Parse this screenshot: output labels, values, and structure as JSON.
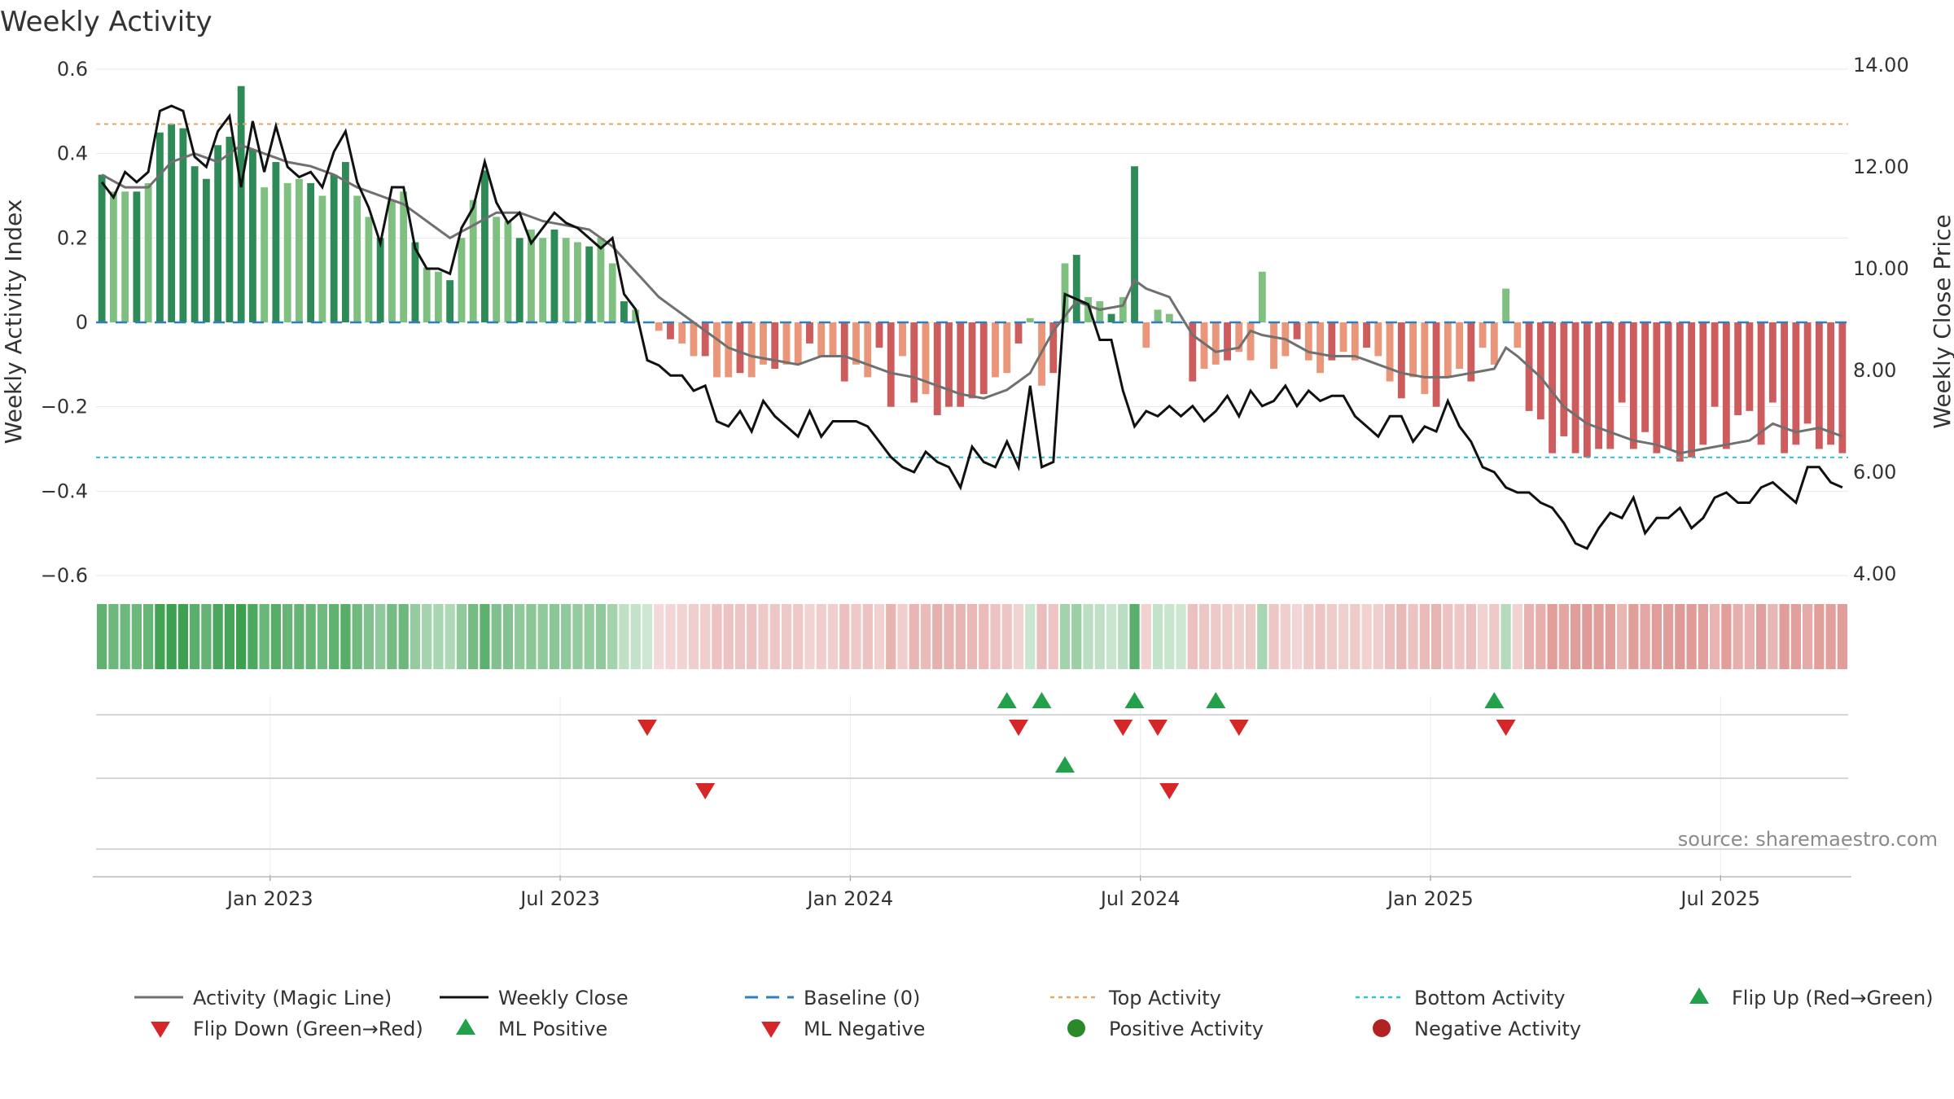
{
  "chart_data": {
    "type": "bar",
    "title": "Weekly Activity",
    "ylabel": "Weekly Activity Index",
    "y2label": "Close Price",
    "y2label_full": "Weekly Close Price",
    "ylim": [
      -0.65,
      0.6
    ],
    "y2lim": [
      3.75,
      14.0
    ],
    "yticks": [
      0.6,
      0.4,
      0.2,
      0,
      -0.2,
      -0.4,
      -0.6
    ],
    "ytick_labels": [
      "0.6",
      "0.4",
      "0.2",
      "0",
      "−0.2",
      "−0.4",
      "−0.6"
    ],
    "y2ticks": [
      14,
      12,
      10,
      8,
      6,
      4
    ],
    "y2tick_labels": [
      "14.00",
      "12.00",
      "10.00",
      "8.00",
      "6.00",
      "4.00"
    ],
    "x_start": "2022-10-24",
    "x_step_days": 7,
    "week_count": 151,
    "xtick_labels": [
      "Jan 2023",
      "Jul 2023",
      "Jan 2024",
      "Jul 2024",
      "Jan 2025",
      "Jul 2025"
    ],
    "xtick_weeks": [
      14.5,
      39.5,
      64.5,
      89.5,
      114.5,
      139.5
    ],
    "top_activity": 0.47,
    "bottom_activity": -0.32,
    "baseline": 0,
    "activity_keypoints": [
      [
        0,
        0.35
      ],
      [
        1,
        0.31
      ],
      [
        3,
        0.31
      ],
      [
        4,
        0.33
      ],
      [
        5,
        0.45
      ],
      [
        6,
        0.47
      ],
      [
        7,
        0.46
      ],
      [
        8,
        0.37
      ],
      [
        9,
        0.34
      ],
      [
        10,
        0.42
      ],
      [
        11,
        0.44
      ],
      [
        12,
        0.56
      ],
      [
        13,
        0.41
      ],
      [
        14,
        0.32
      ],
      [
        15,
        0.38
      ],
      [
        16,
        0.33
      ],
      [
        17,
        0.34
      ],
      [
        18,
        0.33
      ],
      [
        19,
        0.3
      ],
      [
        20,
        0.35
      ],
      [
        21,
        0.38
      ],
      [
        22,
        0.3
      ],
      [
        23,
        0.25
      ],
      [
        24,
        0.2
      ],
      [
        25,
        0.29
      ],
      [
        26,
        0.31
      ],
      [
        27,
        0.19
      ],
      [
        28,
        0.13
      ],
      [
        29,
        0.12
      ],
      [
        30,
        0.1
      ],
      [
        31,
        0.2
      ],
      [
        32,
        0.29
      ],
      [
        33,
        0.36
      ],
      [
        34,
        0.25
      ],
      [
        35,
        0.24
      ],
      [
        36,
        0.2
      ],
      [
        37,
        0.22
      ],
      [
        38,
        0.2
      ],
      [
        39,
        0.22
      ],
      [
        40,
        0.2
      ],
      [
        41,
        0.19
      ],
      [
        42,
        0.18
      ],
      [
        43,
        0.2
      ],
      [
        44,
        0.14
      ],
      [
        45,
        0.05
      ],
      [
        46,
        0.03
      ],
      [
        47,
        0.0
      ],
      [
        48,
        -0.02
      ],
      [
        49,
        -0.04
      ],
      [
        50,
        -0.05
      ],
      [
        51,
        -0.08
      ],
      [
        52,
        -0.08
      ],
      [
        53,
        -0.13
      ],
      [
        54,
        -0.13
      ],
      [
        55,
        -0.12
      ],
      [
        56,
        -0.13
      ],
      [
        57,
        -0.1
      ],
      [
        58,
        -0.11
      ],
      [
        59,
        -0.1
      ],
      [
        60,
        -0.1
      ],
      [
        61,
        -0.05
      ],
      [
        62,
        -0.08
      ],
      [
        63,
        -0.08
      ],
      [
        64,
        -0.14
      ],
      [
        65,
        -0.1
      ],
      [
        66,
        -0.13
      ],
      [
        67,
        -0.06
      ],
      [
        68,
        -0.2
      ],
      [
        69,
        -0.08
      ],
      [
        70,
        -0.19
      ],
      [
        71,
        -0.17
      ],
      [
        72,
        -0.22
      ],
      [
        73,
        -0.2
      ],
      [
        74,
        -0.2
      ],
      [
        75,
        -0.18
      ],
      [
        76,
        -0.17
      ],
      [
        77,
        -0.13
      ],
      [
        78,
        -0.12
      ],
      [
        79,
        -0.05
      ],
      [
        80,
        0.01
      ],
      [
        81,
        -0.15
      ],
      [
        82,
        -0.12
      ],
      [
        83,
        0.14
      ],
      [
        84,
        0.16
      ],
      [
        85,
        0.06
      ],
      [
        86,
        0.05
      ],
      [
        87,
        0.02
      ],
      [
        88,
        0.06
      ],
      [
        89,
        0.37
      ],
      [
        90,
        -0.06
      ],
      [
        91,
        0.03
      ],
      [
        92,
        0.02
      ],
      [
        93,
        0.0
      ],
      [
        94,
        -0.14
      ],
      [
        95,
        -0.11
      ],
      [
        96,
        -0.1
      ],
      [
        97,
        -0.09
      ],
      [
        98,
        -0.07
      ],
      [
        99,
        -0.09
      ],
      [
        100,
        0.12
      ],
      [
        101,
        -0.11
      ],
      [
        102,
        -0.08
      ],
      [
        103,
        -0.04
      ],
      [
        104,
        -0.09
      ],
      [
        105,
        -0.12
      ],
      [
        106,
        -0.09
      ],
      [
        107,
        -0.07
      ],
      [
        108,
        -0.09
      ],
      [
        109,
        -0.06
      ],
      [
        110,
        -0.08
      ],
      [
        111,
        -0.14
      ],
      [
        112,
        -0.18
      ],
      [
        113,
        -0.13
      ],
      [
        114,
        -0.17
      ],
      [
        115,
        -0.2
      ],
      [
        116,
        -0.13
      ],
      [
        117,
        -0.11
      ],
      [
        118,
        -0.14
      ],
      [
        119,
        -0.06
      ],
      [
        120,
        -0.1
      ],
      [
        121,
        0.08
      ],
      [
        122,
        -0.06
      ],
      [
        123,
        -0.21
      ],
      [
        124,
        -0.23
      ],
      [
        125,
        -0.31
      ],
      [
        126,
        -0.27
      ],
      [
        127,
        -0.31
      ],
      [
        128,
        -0.32
      ],
      [
        129,
        -0.3
      ],
      [
        130,
        -0.3
      ],
      [
        131,
        -0.19
      ],
      [
        132,
        -0.3
      ],
      [
        133,
        -0.26
      ],
      [
        134,
        -0.31
      ],
      [
        135,
        -0.3
      ],
      [
        136,
        -0.33
      ],
      [
        137,
        -0.32
      ],
      [
        138,
        -0.29
      ],
      [
        139,
        -0.2
      ],
      [
        140,
        -0.3
      ],
      [
        141,
        -0.22
      ],
      [
        142,
        -0.21
      ],
      [
        143,
        -0.29
      ],
      [
        144,
        -0.19
      ],
      [
        145,
        -0.31
      ],
      [
        146,
        -0.29
      ],
      [
        147,
        -0.24
      ],
      [
        148,
        -0.3
      ],
      [
        149,
        -0.29
      ],
      [
        150,
        -0.31
      ]
    ],
    "magic_keypoints": [
      [
        0,
        0.35
      ],
      [
        2,
        0.32
      ],
      [
        4,
        0.32
      ],
      [
        6,
        0.38
      ],
      [
        8,
        0.4
      ],
      [
        10,
        0.38
      ],
      [
        12,
        0.42
      ],
      [
        14,
        0.4
      ],
      [
        16,
        0.38
      ],
      [
        18,
        0.37
      ],
      [
        20,
        0.35
      ],
      [
        22,
        0.32
      ],
      [
        24,
        0.3
      ],
      [
        26,
        0.28
      ],
      [
        28,
        0.24
      ],
      [
        30,
        0.2
      ],
      [
        32,
        0.23
      ],
      [
        34,
        0.26
      ],
      [
        36,
        0.26
      ],
      [
        38,
        0.24
      ],
      [
        40,
        0.23
      ],
      [
        42,
        0.22
      ],
      [
        44,
        0.18
      ],
      [
        46,
        0.12
      ],
      [
        48,
        0.06
      ],
      [
        50,
        0.02
      ],
      [
        52,
        -0.02
      ],
      [
        54,
        -0.06
      ],
      [
        56,
        -0.08
      ],
      [
        58,
        -0.09
      ],
      [
        60,
        -0.1
      ],
      [
        62,
        -0.08
      ],
      [
        64,
        -0.08
      ],
      [
        66,
        -0.1
      ],
      [
        68,
        -0.12
      ],
      [
        70,
        -0.13
      ],
      [
        72,
        -0.15
      ],
      [
        74,
        -0.17
      ],
      [
        76,
        -0.18
      ],
      [
        78,
        -0.16
      ],
      [
        80,
        -0.12
      ],
      [
        82,
        -0.02
      ],
      [
        84,
        0.05
      ],
      [
        86,
        0.03
      ],
      [
        88,
        0.04
      ],
      [
        89,
        0.1
      ],
      [
        90,
        0.08
      ],
      [
        92,
        0.06
      ],
      [
        94,
        -0.03
      ],
      [
        96,
        -0.07
      ],
      [
        98,
        -0.06
      ],
      [
        99,
        -0.02
      ],
      [
        100,
        -0.03
      ],
      [
        102,
        -0.04
      ],
      [
        104,
        -0.07
      ],
      [
        106,
        -0.08
      ],
      [
        108,
        -0.08
      ],
      [
        110,
        -0.1
      ],
      [
        112,
        -0.12
      ],
      [
        114,
        -0.13
      ],
      [
        116,
        -0.13
      ],
      [
        118,
        -0.12
      ],
      [
        120,
        -0.11
      ],
      [
        121,
        -0.06
      ],
      [
        122,
        -0.08
      ],
      [
        124,
        -0.13
      ],
      [
        126,
        -0.2
      ],
      [
        128,
        -0.24
      ],
      [
        130,
        -0.26
      ],
      [
        132,
        -0.28
      ],
      [
        134,
        -0.29
      ],
      [
        136,
        -0.31
      ],
      [
        138,
        -0.3
      ],
      [
        140,
        -0.29
      ],
      [
        142,
        -0.28
      ],
      [
        144,
        -0.24
      ],
      [
        146,
        -0.26
      ],
      [
        148,
        -0.25
      ],
      [
        150,
        -0.27
      ]
    ],
    "close_keypoints": [
      [
        0,
        11.7
      ],
      [
        1,
        11.4
      ],
      [
        2,
        11.9
      ],
      [
        3,
        11.7
      ],
      [
        4,
        11.9
      ],
      [
        5,
        13.1
      ],
      [
        6,
        13.2
      ],
      [
        7,
        13.1
      ],
      [
        8,
        12.2
      ],
      [
        9,
        12.0
      ],
      [
        10,
        12.7
      ],
      [
        11,
        13.0
      ],
      [
        12,
        11.6
      ],
      [
        13,
        12.9
      ],
      [
        14,
        11.9
      ],
      [
        15,
        12.8
      ],
      [
        16,
        12.0
      ],
      [
        17,
        11.8
      ],
      [
        18,
        11.9
      ],
      [
        19,
        11.6
      ],
      [
        20,
        12.3
      ],
      [
        21,
        12.7
      ],
      [
        22,
        11.7
      ],
      [
        23,
        11.2
      ],
      [
        24,
        10.5
      ],
      [
        25,
        11.6
      ],
      [
        26,
        11.6
      ],
      [
        27,
        10.4
      ],
      [
        28,
        10.0
      ],
      [
        29,
        10.0
      ],
      [
        30,
        9.9
      ],
      [
        31,
        10.8
      ],
      [
        32,
        11.2
      ],
      [
        33,
        12.1
      ],
      [
        34,
        11.3
      ],
      [
        35,
        10.9
      ],
      [
        36,
        11.1
      ],
      [
        37,
        10.5
      ],
      [
        38,
        10.8
      ],
      [
        39,
        11.1
      ],
      [
        40,
        10.9
      ],
      [
        41,
        10.8
      ],
      [
        42,
        10.6
      ],
      [
        43,
        10.4
      ],
      [
        44,
        10.6
      ],
      [
        45,
        9.5
      ],
      [
        46,
        9.2
      ],
      [
        47,
        8.2
      ],
      [
        48,
        8.1
      ],
      [
        49,
        7.9
      ],
      [
        50,
        7.9
      ],
      [
        51,
        7.6
      ],
      [
        52,
        7.7
      ],
      [
        53,
        7.0
      ],
      [
        54,
        6.9
      ],
      [
        55,
        7.2
      ],
      [
        56,
        6.8
      ],
      [
        57,
        7.4
      ],
      [
        58,
        7.1
      ],
      [
        59,
        6.9
      ],
      [
        60,
        6.7
      ],
      [
        61,
        7.2
      ],
      [
        62,
        6.7
      ],
      [
        63,
        7.0
      ],
      [
        64,
        7.0
      ],
      [
        65,
        7.0
      ],
      [
        66,
        6.9
      ],
      [
        67,
        6.6
      ],
      [
        68,
        6.3
      ],
      [
        69,
        6.1
      ],
      [
        70,
        6.0
      ],
      [
        71,
        6.4
      ],
      [
        72,
        6.2
      ],
      [
        73,
        6.1
      ],
      [
        74,
        5.7
      ],
      [
        75,
        6.5
      ],
      [
        76,
        6.2
      ],
      [
        77,
        6.1
      ],
      [
        78,
        6.6
      ],
      [
        79,
        6.1
      ],
      [
        80,
        7.7
      ],
      [
        81,
        6.1
      ],
      [
        82,
        6.2
      ],
      [
        83,
        9.5
      ],
      [
        84,
        9.4
      ],
      [
        85,
        9.3
      ],
      [
        86,
        8.6
      ],
      [
        87,
        8.6
      ],
      [
        88,
        7.6
      ],
      [
        89,
        6.9
      ],
      [
        90,
        7.2
      ],
      [
        91,
        7.1
      ],
      [
        92,
        7.3
      ],
      [
        93,
        7.1
      ],
      [
        94,
        7.3
      ],
      [
        95,
        7.0
      ],
      [
        96,
        7.2
      ],
      [
        97,
        7.5
      ],
      [
        98,
        7.1
      ],
      [
        99,
        7.6
      ],
      [
        100,
        7.3
      ],
      [
        101,
        7.4
      ],
      [
        102,
        7.7
      ],
      [
        103,
        7.3
      ],
      [
        104,
        7.6
      ],
      [
        105,
        7.4
      ],
      [
        106,
        7.5
      ],
      [
        107,
        7.5
      ],
      [
        108,
        7.1
      ],
      [
        109,
        6.9
      ],
      [
        110,
        6.7
      ],
      [
        111,
        7.1
      ],
      [
        112,
        7.1
      ],
      [
        113,
        6.6
      ],
      [
        114,
        6.9
      ],
      [
        115,
        6.8
      ],
      [
        116,
        7.4
      ],
      [
        117,
        6.9
      ],
      [
        118,
        6.6
      ],
      [
        119,
        6.1
      ],
      [
        120,
        6.0
      ],
      [
        121,
        5.7
      ],
      [
        122,
        5.6
      ],
      [
        123,
        5.6
      ],
      [
        124,
        5.4
      ],
      [
        125,
        5.3
      ],
      [
        126,
        5.0
      ],
      [
        127,
        4.6
      ],
      [
        128,
        4.5
      ],
      [
        129,
        4.9
      ],
      [
        130,
        5.2
      ],
      [
        131,
        5.1
      ],
      [
        132,
        5.5
      ],
      [
        133,
        4.8
      ],
      [
        134,
        5.1
      ],
      [
        135,
        5.1
      ],
      [
        136,
        5.3
      ],
      [
        137,
        4.9
      ],
      [
        138,
        5.1
      ],
      [
        139,
        5.5
      ],
      [
        140,
        5.6
      ],
      [
        141,
        5.4
      ],
      [
        142,
        5.4
      ],
      [
        143,
        5.7
      ],
      [
        144,
        5.8
      ],
      [
        145,
        5.6
      ],
      [
        146,
        5.4
      ],
      [
        147,
        6.1
      ],
      [
        148,
        6.1
      ],
      [
        149,
        5.8
      ],
      [
        150,
        5.7
      ]
    ],
    "flip_up_weeks": [
      78,
      81,
      89,
      96,
      120
    ],
    "flip_down_weeks": [
      47,
      79,
      88,
      91,
      98,
      121
    ],
    "ml_positive_weeks": [
      83
    ],
    "ml_negative_weeks": [
      52,
      92
    ],
    "source": "source: sharemaestro.com",
    "legend": [
      {
        "label": "Activity (Magic Line)",
        "kind": "line",
        "color": "#707070"
      },
      {
        "label": "Weekly Close",
        "kind": "line",
        "color": "#111111"
      },
      {
        "label": "Baseline (0)",
        "kind": "dash",
        "color": "#2f7fc0"
      },
      {
        "label": "Top Activity",
        "kind": "dot",
        "color": "#e0a862"
      },
      {
        "label": "Bottom Activity",
        "kind": "dot",
        "color": "#2ec4cf"
      },
      {
        "label": "Flip Up (Red→Green)",
        "kind": "tri-up",
        "color": "#22a04a"
      },
      {
        "label": "Flip Down (Green→Red)",
        "kind": "tri-down",
        "color": "#d62728"
      },
      {
        "label": "ML Positive",
        "kind": "tri-up",
        "color": "#22a04a"
      },
      {
        "label": "ML Negative",
        "kind": "tri-down",
        "color": "#d62728"
      },
      {
        "label": "Positive Activity",
        "kind": "circle",
        "color": "#2a8a2a"
      },
      {
        "label": "Negative Activity",
        "kind": "circle",
        "color": "#b22222"
      }
    ],
    "colors": {
      "pos_dark": "#2e8b57",
      "pos_light": "#7fbf7f",
      "neg_dark": "#cd5c5c",
      "neg_light": "#e9967a",
      "magic": "#707070",
      "close": "#111111",
      "baseline": "#2f7fc0",
      "top": "#e0a862",
      "bottom": "#2ec4cf",
      "up": "#22a04a",
      "down": "#d62728",
      "grid": "#e8e8e8"
    }
  }
}
